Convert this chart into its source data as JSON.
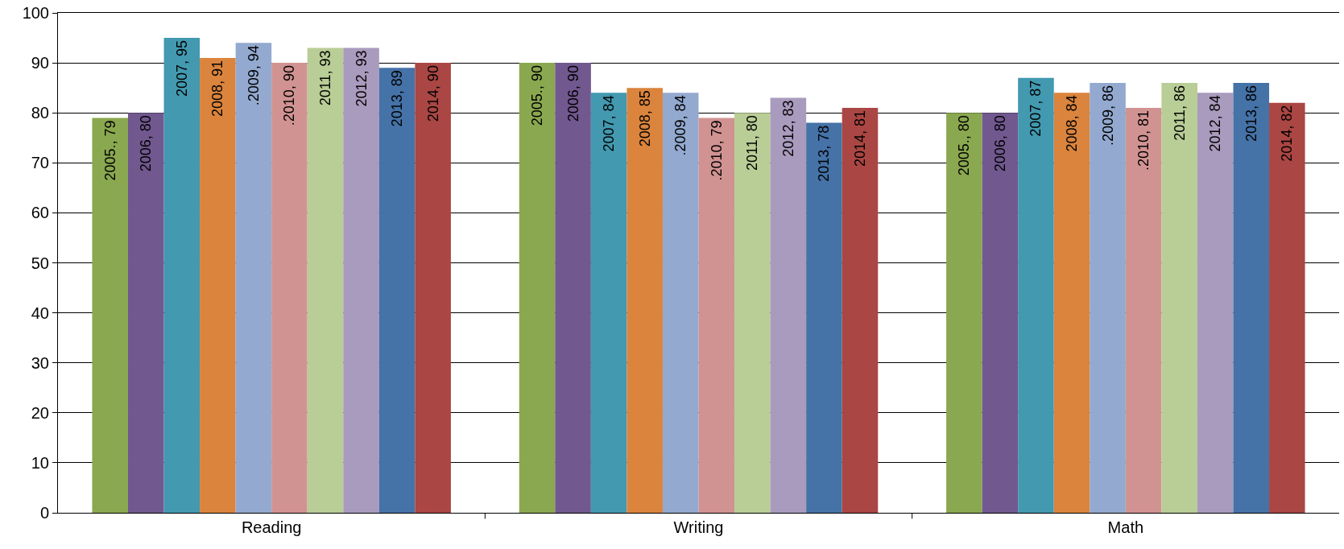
{
  "chart_data": {
    "type": "bar",
    "categories": [
      "Reading",
      "Writing",
      "Math"
    ],
    "ylim": [
      0,
      100
    ],
    "yticks": [
      0,
      10,
      20,
      30,
      40,
      50,
      60,
      70,
      80,
      90,
      100
    ],
    "grid": "y",
    "series": [
      {
        "color": "#8aa84f",
        "values": [
          79,
          90,
          80
        ],
        "value_labels": [
          "2005., 79",
          "2005., 90",
          "2005., 80"
        ]
      },
      {
        "color": "#71588f",
        "values": [
          80,
          90,
          80
        ],
        "value_labels": [
          "2006, 80",
          "2006, 90",
          "2006, 80"
        ]
      },
      {
        "color": "#4299b0",
        "values": [
          95,
          84,
          87
        ],
        "value_labels": [
          "2007, 95",
          "2007, 84",
          "2007, 87"
        ]
      },
      {
        "color": "#db843d",
        "values": [
          91,
          85,
          84
        ],
        "value_labels": [
          "2008, 91",
          "2008, 85",
          "2008, 84"
        ]
      },
      {
        "color": "#93a9cf",
        "values": [
          94,
          84,
          86
        ],
        "value_labels": [
          ".2009, 94",
          ".2009, 84",
          ".2009, 86"
        ]
      },
      {
        "color": "#d19392",
        "values": [
          90,
          79,
          81
        ],
        "value_labels": [
          ".2010, 90",
          ".2010, 79",
          ".2010, 81"
        ]
      },
      {
        "color": "#b9cd96",
        "values": [
          93,
          80,
          86
        ],
        "value_labels": [
          "2011, 93",
          "2011, 80",
          "2011, 86"
        ]
      },
      {
        "color": "#a99bbd",
        "values": [
          93,
          83,
          84
        ],
        "value_labels": [
          "2012, 93",
          "2012, 83",
          "2012, 84"
        ]
      },
      {
        "color": "#4572a7",
        "values": [
          89,
          78,
          86
        ],
        "value_labels": [
          "2013, 89",
          "2013, 78",
          "2013, 86"
        ]
      },
      {
        "color": "#aa4643",
        "values": [
          90,
          81,
          82
        ],
        "value_labels": [
          "2014, 90",
          "2014, 81",
          "2014, 82"
        ]
      }
    ]
  }
}
